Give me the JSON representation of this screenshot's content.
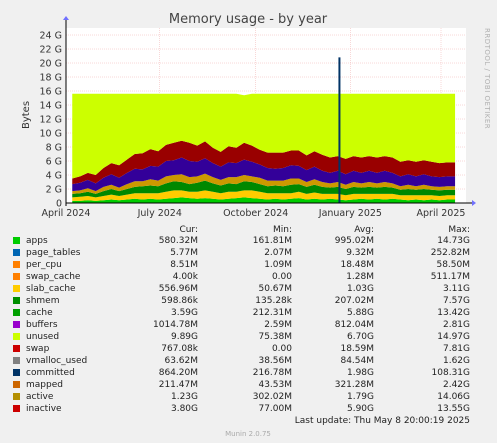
{
  "chart_data": {
    "type": "area",
    "title": "Memory usage - by year",
    "ylabel": "Bytes",
    "side_text": "RRDTOOL / TOBI OETIKER",
    "y_ticks": [
      "0",
      "2 G",
      "4 G",
      "6 G",
      "8 G",
      "10 G",
      "12 G",
      "14 G",
      "16 G",
      "18 G",
      "20 G",
      "22 G",
      "24 G"
    ],
    "ylim": [
      0,
      25
    ],
    "y_unit": "GB",
    "x_ticks": [
      {
        "label": "April 2024",
        "x": 0.0
      },
      {
        "label": "July 2024",
        "x": 3.0
      },
      {
        "label": "October 2024",
        "x": 6.07
      },
      {
        "label": "January 2025",
        "x": 9.1
      },
      {
        "label": "April 2025",
        "x": 12.0
      }
    ],
    "xlim": [
      0,
      12.8
    ],
    "x_unit": "months since April 2024",
    "grid": true,
    "stack_samples_x": [
      0.2,
      0.45,
      0.7,
      0.95,
      1.2,
      1.45,
      1.7,
      1.95,
      2.2,
      2.45,
      2.7,
      2.95,
      3.2,
      3.45,
      3.7,
      3.95,
      4.2,
      4.45,
      4.7,
      4.95,
      5.2,
      5.45,
      5.7,
      5.95,
      6.2,
      6.45,
      6.7,
      6.95,
      7.2,
      7.45,
      7.7,
      7.95,
      8.2,
      8.45,
      8.7,
      8.95,
      9.2,
      9.45,
      9.7,
      9.95,
      10.2,
      10.45,
      10.7,
      10.95,
      11.2,
      11.45,
      11.7,
      11.95,
      12.2,
      12.45
    ],
    "series_stack": [
      {
        "name": "apps",
        "color": "#00cc00",
        "values": [
          0.3,
          0.3,
          0.4,
          0.3,
          0.4,
          0.5,
          0.4,
          0.5,
          0.6,
          0.5,
          0.6,
          0.5,
          0.6,
          0.7,
          0.8,
          0.7,
          0.6,
          0.7,
          0.6,
          0.5,
          0.6,
          0.7,
          0.8,
          0.7,
          0.6,
          0.5,
          0.6,
          0.5,
          0.6,
          0.7,
          0.5,
          0.6,
          0.5,
          0.6,
          0.5,
          0.4,
          0.5,
          0.6,
          0.5,
          0.6,
          0.5,
          0.6,
          0.5,
          0.4,
          0.5,
          0.4,
          0.5,
          0.4,
          0.5,
          0.5
        ]
      },
      {
        "name": "slab_cache",
        "color": "#ffcc00",
        "values": [
          0.5,
          0.6,
          0.6,
          0.5,
          0.6,
          0.7,
          0.6,
          0.7,
          0.8,
          0.9,
          0.8,
          0.9,
          1.0,
          1.1,
          1.0,
          0.9,
          1.0,
          1.1,
          1.0,
          0.9,
          1.0,
          0.9,
          1.0,
          1.1,
          1.0,
          0.9,
          0.8,
          0.9,
          0.8,
          0.9,
          0.8,
          0.9,
          0.8,
          0.7,
          0.8,
          0.7,
          0.8,
          0.7,
          0.8,
          0.7,
          0.8,
          0.7,
          0.6,
          0.7,
          0.6,
          0.7,
          0.6,
          0.6,
          0.6,
          0.6
        ]
      },
      {
        "name": "cache",
        "color": "#008800",
        "values": [
          0.5,
          0.5,
          0.6,
          0.5,
          0.7,
          0.8,
          0.7,
          0.8,
          0.9,
          1.0,
          1.1,
          1.0,
          1.2,
          1.3,
          1.2,
          1.1,
          1.3,
          1.4,
          1.2,
          1.1,
          1.2,
          1.1,
          1.3,
          1.2,
          1.1,
          1.0,
          1.1,
          1.0,
          1.2,
          1.1,
          1.0,
          1.1,
          1.0,
          0.9,
          1.0,
          0.9,
          1.0,
          0.9,
          1.0,
          0.9,
          1.0,
          0.9,
          0.8,
          0.9,
          0.8,
          0.9,
          0.8,
          0.8,
          0.8,
          0.8
        ]
      },
      {
        "name": "active",
        "color": "#cc9900",
        "values": [
          0.4,
          0.4,
          0.5,
          0.4,
          0.6,
          0.6,
          0.5,
          0.7,
          0.8,
          0.7,
          0.9,
          0.8,
          1.0,
          0.9,
          1.1,
          1.0,
          0.9,
          1.0,
          0.9,
          0.8,
          0.9,
          1.0,
          0.9,
          0.8,
          0.9,
          0.8,
          0.7,
          0.8,
          0.9,
          0.8,
          0.7,
          0.8,
          0.7,
          0.6,
          0.7,
          0.6,
          0.7,
          0.6,
          0.7,
          0.6,
          0.7,
          0.6,
          0.5,
          0.6,
          0.5,
          0.6,
          0.5,
          0.5,
          0.5,
          0.5
        ]
      },
      {
        "name": "buffers",
        "color": "#330099",
        "values": [
          1.0,
          1.1,
          1.2,
          1.1,
          1.3,
          1.5,
          1.4,
          1.6,
          1.8,
          1.7,
          1.9,
          2.0,
          2.2,
          2.1,
          2.4,
          2.3,
          2.1,
          2.2,
          2.0,
          1.9,
          2.1,
          2.0,
          2.2,
          2.1,
          1.9,
          1.8,
          1.7,
          1.8,
          1.9,
          1.8,
          1.7,
          1.8,
          1.6,
          1.5,
          1.6,
          1.5,
          1.6,
          1.5,
          1.6,
          1.5,
          1.6,
          1.5,
          1.4,
          1.5,
          1.4,
          1.5,
          1.4,
          1.4,
          1.4,
          1.4
        ]
      },
      {
        "name": "swap",
        "color": "#990000",
        "values": [
          0.8,
          0.9,
          1.0,
          1.2,
          1.4,
          1.6,
          1.8,
          1.9,
          2.1,
          2.3,
          2.4,
          2.2,
          2.3,
          2.5,
          2.4,
          2.6,
          2.3,
          2.4,
          2.2,
          2.1,
          2.3,
          2.2,
          2.4,
          2.3,
          2.1,
          2.2,
          2.3,
          2.2,
          2.1,
          2.2,
          2.1,
          2.2,
          2.3,
          2.2,
          2.1,
          2.2,
          2.1,
          2.2,
          2.1,
          2.2,
          2.1,
          2.2,
          2.1,
          2.0,
          2.1,
          2.0,
          2.1,
          2.0,
          2.0,
          2.0
        ]
      },
      {
        "name": "unused",
        "color": "#ccff00",
        "values": [
          12.1,
          11.8,
          11.3,
          11.6,
          10.6,
          9.9,
          10.2,
          9.4,
          8.6,
          8.5,
          7.9,
          8.2,
          7.3,
          7.0,
          6.7,
          7.0,
          7.4,
          6.8,
          7.7,
          8.3,
          7.5,
          7.7,
          6.8,
          7.4,
          8.0,
          8.4,
          8.4,
          8.4,
          8.1,
          8.1,
          8.8,
          8.2,
          8.7,
          9.1,
          8.9,
          9.3,
          8.9,
          9.1,
          8.9,
          9.1,
          8.9,
          9.1,
          9.7,
          9.5,
          9.7,
          9.5,
          9.7,
          9.9,
          9.8,
          9.8
        ]
      }
    ],
    "committed_spike": {
      "x": 8.75,
      "y": 20.8
    },
    "legend_headers": [
      "Cur:",
      "Min:",
      "Avg:",
      "Max:"
    ],
    "legend": [
      {
        "name": "apps",
        "color": "#00cc00",
        "cur": "580.32M",
        "min": "161.81M",
        "avg": "995.02M",
        "max": "14.73G"
      },
      {
        "name": "page_tables",
        "color": "#0066b3",
        "cur": "5.77M",
        "min": "2.07M",
        "avg": "9.32M",
        "max": "252.82M"
      },
      {
        "name": "per_cpu",
        "color": "#ff8000",
        "cur": "8.51M",
        "min": "1.09M",
        "avg": "18.48M",
        "max": "58.50M"
      },
      {
        "name": "swap_cache",
        "color": "#ff8000",
        "cur": "4.00k",
        "min": "0.00",
        "avg": "1.28M",
        "max": "511.17M"
      },
      {
        "name": "slab_cache",
        "color": "#ffcc00",
        "cur": "556.96M",
        "min": "50.67M",
        "avg": "1.03G",
        "max": "3.11G"
      },
      {
        "name": "shmem",
        "color": "#008f00",
        "cur": "598.86k",
        "min": "135.28k",
        "avg": "207.02M",
        "max": "7.57G"
      },
      {
        "name": "cache",
        "color": "#00a000",
        "cur": "3.59G",
        "min": "212.31M",
        "avg": "5.88G",
        "max": "13.42G"
      },
      {
        "name": "buffers",
        "color": "#9900cc",
        "cur": "1014.78M",
        "min": "2.59M",
        "avg": "812.04M",
        "max": "2.81G"
      },
      {
        "name": "unused",
        "color": "#ccff00",
        "cur": "9.89G",
        "min": "75.38M",
        "avg": "6.70G",
        "max": "14.97G"
      },
      {
        "name": "swap",
        "color": "#cc0000",
        "cur": "767.08k",
        "min": "0.00",
        "avg": "18.59M",
        "max": "7.81G"
      },
      {
        "name": "vmalloc_used",
        "color": "#808080",
        "cur": "63.62M",
        "min": "38.56M",
        "avg": "84.54M",
        "max": "1.62G"
      },
      {
        "name": "committed",
        "color": "#003366",
        "cur": "864.20M",
        "min": "216.78M",
        "avg": "1.98G",
        "max": "108.31G"
      },
      {
        "name": "mapped",
        "color": "#cc6600",
        "cur": "211.47M",
        "min": "43.53M",
        "avg": "321.28M",
        "max": "2.42G"
      },
      {
        "name": "active",
        "color": "#b38f00",
        "cur": "1.23G",
        "min": "302.02M",
        "avg": "1.79G",
        "max": "14.06G"
      },
      {
        "name": "inactive",
        "color": "#cc0000",
        "cur": "3.80G",
        "min": "77.00M",
        "avg": "5.90G",
        "max": "13.55G"
      }
    ],
    "last_update": "Last update: Thu May  8 20:00:19 2025",
    "footer": "Munin 2.0.75"
  }
}
